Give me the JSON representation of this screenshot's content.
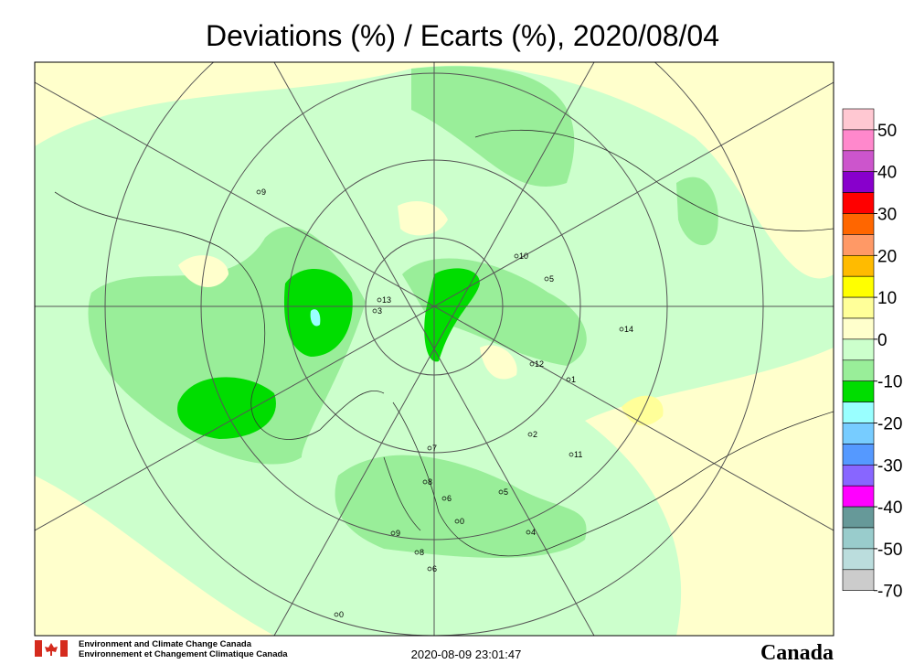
{
  "header": {
    "title": "Deviations (%) / Ecarts (%), 2020/08/04"
  },
  "legend": {
    "colors": [
      "#ffc8d2",
      "#ff88cc",
      "#cc55cc",
      "#8800cc",
      "#ff0000",
      "#ff6600",
      "#ff9966",
      "#ffbb00",
      "#ffff00",
      "#ffff99",
      "#ffffcc",
      "#ccffcc",
      "#99ee99",
      "#00dd00",
      "#99ffff",
      "#77ccff",
      "#5599ff",
      "#8866ff",
      "#ff00ff",
      "#669999",
      "#99cccc",
      "#bbdddd",
      "#cccccc"
    ],
    "labels": [
      50,
      40,
      30,
      20,
      10,
      0,
      -10,
      -20,
      -30,
      -40,
      -50,
      -70
    ]
  },
  "stations": [
    "7",
    "8",
    "2",
    "1",
    "10",
    "5",
    "14",
    "13",
    "12",
    "9",
    "6",
    "4",
    "3",
    "0",
    "11",
    "5",
    "8",
    "6",
    "9",
    "0"
  ],
  "footer": {
    "agency_en": "Environment and Climate Change Canada",
    "agency_fr": "Environnement et Changement Climatique Canada",
    "timestamp": "2020-08-09 23:01:47",
    "wordmark": "Canada"
  }
}
